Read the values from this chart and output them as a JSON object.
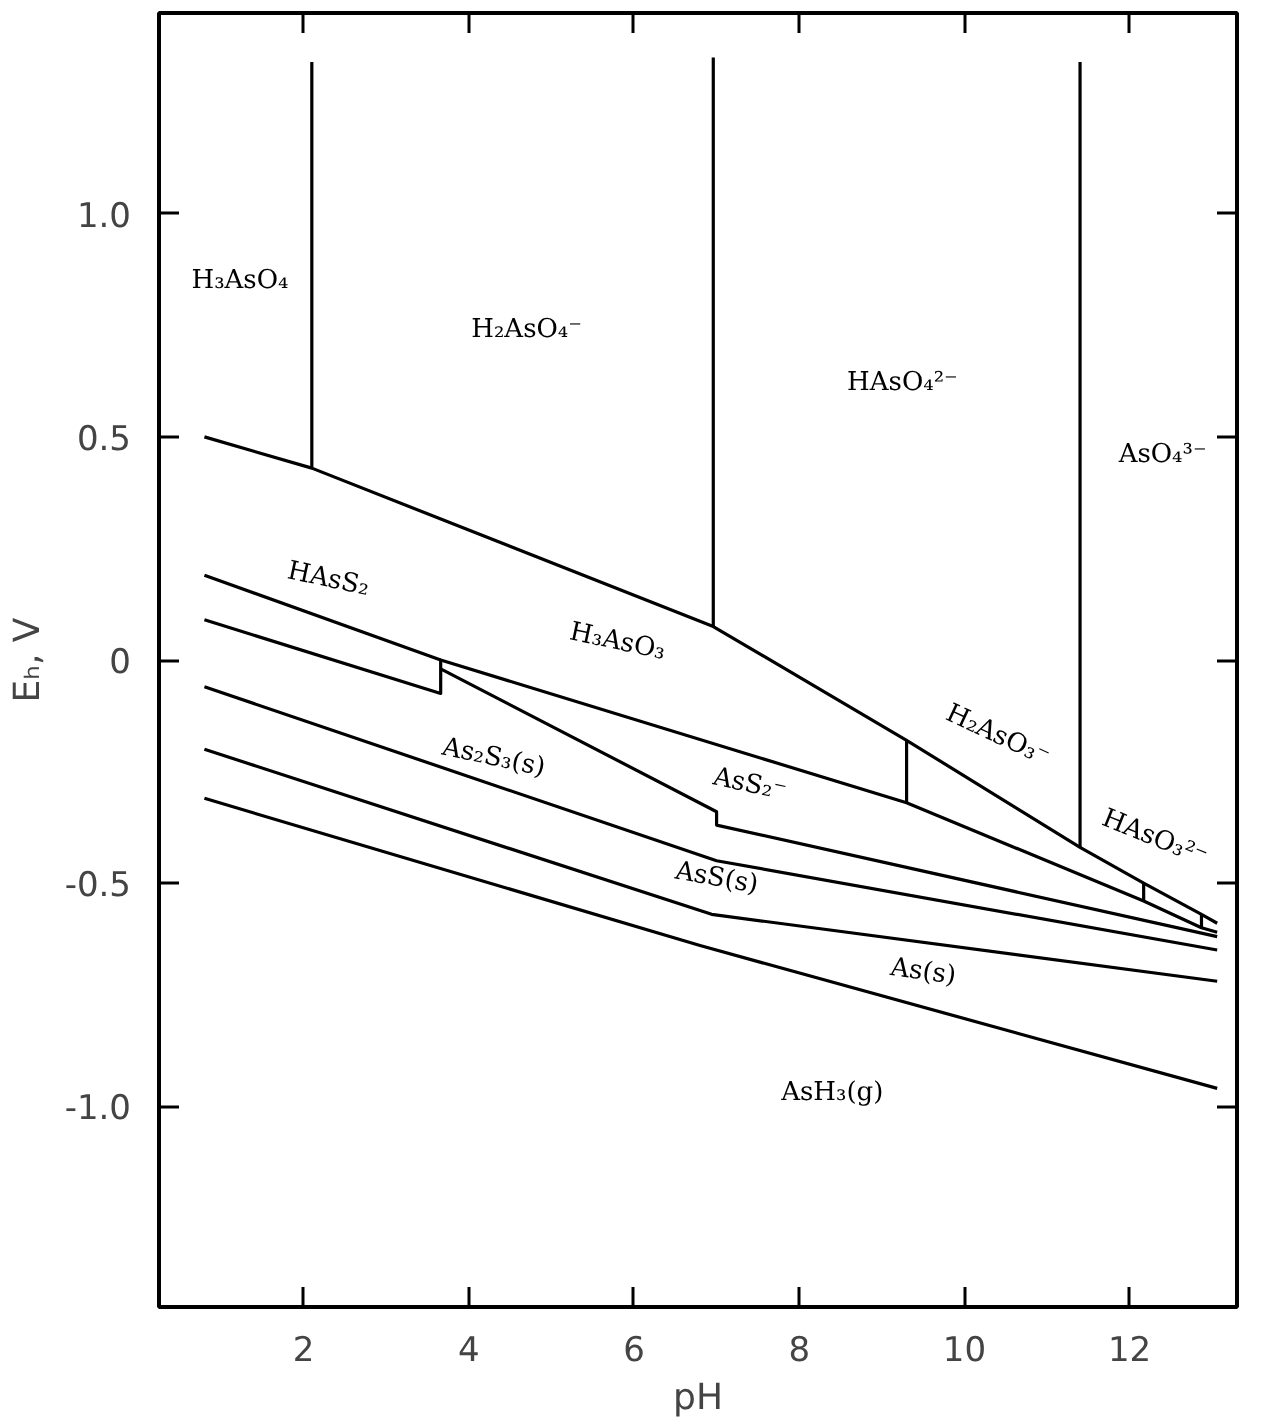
{
  "chart_data": {
    "type": "line",
    "xlabel": "pH",
    "ylabel": "Eₕ, V",
    "xlim": [
      0.25,
      13.3
    ],
    "ylim": [
      -1.45,
      1.45
    ],
    "xticks": [
      2,
      4,
      6,
      8,
      10,
      12
    ],
    "yticks": [
      {
        "value": -1.0,
        "label": "-1.0"
      },
      {
        "value": -0.5,
        "label": "-0.5"
      },
      0,
      {
        "value": 0.5,
        "label": "0.5"
      },
      {
        "value": 1.0,
        "label": "1.0"
      }
    ],
    "grid": false,
    "marker": "none",
    "line_style": "solid",
    "series": [
      {
        "color": "#000000",
        "x": [
          0.8,
          2.1,
          6.96,
          9.3,
          11.4,
          12.17,
          12.87,
          13.06
        ],
        "values": [
          0.5,
          0.43,
          0.075,
          -0.18,
          -0.42,
          -0.5,
          -0.57,
          -0.59
        ]
      },
      {
        "color": "#000000",
        "x": [
          0.8,
          3.66,
          9.3,
          12.17,
          12.87,
          13.06
        ],
        "values": [
          0.19,
          0.0,
          -0.32,
          -0.54,
          -0.6,
          -0.61
        ]
      },
      {
        "color": "#000000",
        "x": [
          0.8,
          3.66,
          3.66,
          3.66,
          7.0,
          7.0,
          13.06
        ],
        "values": [
          0.09,
          -0.075,
          0.0,
          -0.02,
          -0.34,
          -0.37,
          -0.62
        ]
      },
      {
        "color": "#000000",
        "x": [
          0.8,
          7.0,
          13.06
        ],
        "values": [
          -0.06,
          -0.45,
          -0.65
        ]
      },
      {
        "color": "#000000",
        "x": [
          0.8,
          6.94,
          13.06
        ],
        "values": [
          -0.2,
          -0.57,
          -0.72
        ]
      },
      {
        "color": "#000000",
        "x": [
          0.8,
          6.8,
          13.06
        ],
        "values": [
          -0.31,
          -0.64,
          -0.96
        ]
      },
      {
        "color": "#000000",
        "x": [
          2.1,
          2.1
        ],
        "values": [
          0.43,
          1.34
        ]
      },
      {
        "color": "#000000",
        "x": [
          6.96,
          6.96
        ],
        "values": [
          0.075,
          1.35
        ]
      },
      {
        "color": "#000000",
        "x": [
          11.4,
          11.4
        ],
        "values": [
          -0.42,
          1.34
        ]
      },
      {
        "color": "#000000",
        "x": [
          9.3,
          9.3
        ],
        "values": [
          -0.18,
          -0.32
        ]
      },
      {
        "color": "#000000",
        "x": [
          12.17,
          12.17
        ],
        "values": [
          -0.5,
          -0.54
        ]
      },
      {
        "color": "#000000",
        "x": [
          12.87,
          12.87
        ],
        "values": [
          -0.57,
          -0.6
        ]
      }
    ],
    "annotations": [
      "H₃AsO₄",
      "H₂AsO₄⁻",
      "HAsO₄²⁻",
      "AsO₄³⁻",
      "HAsS₂",
      "H₃AsO₃",
      "As₂S₃(s)",
      "AsS₂⁻",
      "H₂AsO₃⁻",
      "HAsO₃²⁻",
      "AsS(s)",
      "As(s)",
      "AsH₃(g)"
    ]
  }
}
